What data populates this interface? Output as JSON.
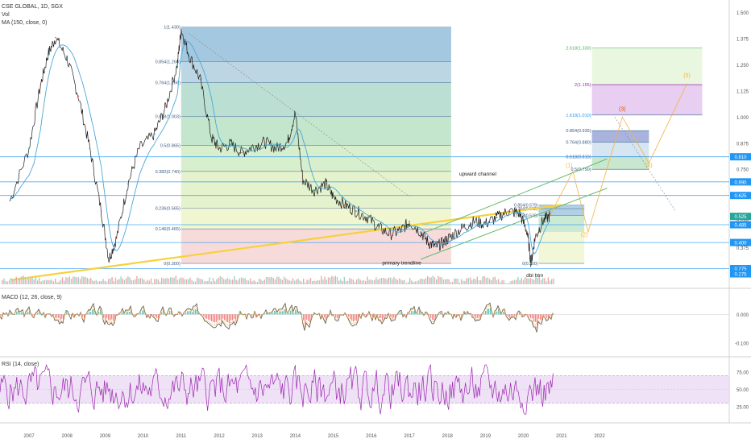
{
  "header": {
    "symbol": "CSE GLOBAL, 1D, SGX",
    "vol_label": "Vol",
    "ma_label": "MA (150, close, 0)"
  },
  "chart_data": [
    {
      "type": "line",
      "panel": "price",
      "symbol": "CSE GLOBAL",
      "interval": "1D",
      "exchange": "SGX",
      "y_scale": "linear",
      "ylim": [
        0.2,
        1.56
      ],
      "x_ticks": [
        "2007",
        "2008",
        "2009",
        "2010",
        "2011",
        "2012",
        "2013",
        "2014",
        "2015",
        "2016",
        "2017",
        "2018",
        "2019",
        "2020",
        "2021",
        "2022"
      ],
      "y_ticks": [
        0.25,
        0.375,
        0.5,
        0.625,
        0.75,
        0.875,
        1.0,
        1.125,
        1.25,
        1.375,
        1.5
      ],
      "y_tick_labels": [
        "0.250",
        "0.375",
        "0.500",
        "0.625",
        "0.750",
        "0.875",
        "1.000",
        "1.125",
        "1.250",
        "1.375",
        "1.500"
      ],
      "x": [
        2006.5,
        2007.0,
        2007.3,
        2007.5,
        2007.7,
        2008.0,
        2008.3,
        2008.6,
        2008.9,
        2009.1,
        2009.3,
        2009.6,
        2009.9,
        2010.3,
        2010.6,
        2010.9,
        2011.0,
        2011.2,
        2011.5,
        2011.8,
        2012.0,
        2012.3,
        2012.6,
        2012.9,
        2013.2,
        2013.5,
        2013.8,
        2014.0,
        2014.2,
        2014.5,
        2014.8,
        2015.0,
        2015.3,
        2015.6,
        2015.9,
        2016.2,
        2016.5,
        2016.8,
        2017.0,
        2017.3,
        2017.5,
        2017.7,
        2017.9,
        2018.1,
        2018.4,
        2018.7,
        2019.0,
        2019.3,
        2019.6,
        2019.9,
        2020.1,
        2020.2,
        2020.3,
        2020.5,
        2020.7
      ],
      "values": [
        0.6,
        0.85,
        1.15,
        1.3,
        1.38,
        1.28,
        1.1,
        0.85,
        0.55,
        0.32,
        0.42,
        0.68,
        0.85,
        0.92,
        1.05,
        1.25,
        1.42,
        1.3,
        1.18,
        0.9,
        0.85,
        0.87,
        0.83,
        0.86,
        0.88,
        0.85,
        0.88,
        1.02,
        0.7,
        0.65,
        0.68,
        0.62,
        0.58,
        0.55,
        0.52,
        0.47,
        0.44,
        0.46,
        0.5,
        0.45,
        0.4,
        0.38,
        0.4,
        0.43,
        0.47,
        0.5,
        0.49,
        0.52,
        0.55,
        0.54,
        0.45,
        0.3,
        0.42,
        0.5,
        0.53
      ],
      "annotations": [
        "upward channel",
        "primary trendline",
        "dbl btm"
      ],
      "fib_retracement": [
        {
          "ratio": 1.0,
          "value": 1.43,
          "label": "1(1.430)"
        },
        {
          "ratio": 0.854,
          "value": 1.266,
          "label": "0.854(1.266)"
        },
        {
          "ratio": 0.764,
          "value": 1.166,
          "label": "0.764(1.166)"
        },
        {
          "ratio": 0.618,
          "value": 1.003,
          "label": "0.618(1.003)"
        },
        {
          "ratio": 0.5,
          "value": 0.865,
          "label": "0.5(0.865)"
        },
        {
          "ratio": 0.382,
          "value": 0.74,
          "label": "0.382(0.740)"
        },
        {
          "ratio": 0.236,
          "value": 0.565,
          "label": "0.236(0.565)"
        },
        {
          "ratio": 0.146,
          "value": 0.465,
          "label": "0.146(0.465)"
        },
        {
          "ratio": 0.0,
          "value": 0.3,
          "label": "0(0.300)"
        }
      ],
      "fib_small": [
        {
          "value": 0.579,
          "label": "0.854(0.579)"
        },
        {
          "value": 0.562,
          "label": "0.764(0.562)"
        },
        {
          "value": 0.53,
          "label": "0.618(0.530)"
        },
        {
          "value": 0.3,
          "label": "0(0.300)"
        }
      ],
      "fib_extension": [
        {
          "value": 1.33,
          "label": "2.618(1.330)"
        },
        {
          "value": 1.155,
          "label": "2(1.155)"
        },
        {
          "value": 1.01,
          "label": "1.618(1.010)"
        },
        {
          "value": 0.935,
          "label": "0.854(0.935)"
        },
        {
          "value": 0.88,
          "label": "0.764(0.880)"
        },
        {
          "value": 0.81,
          "label": "0.618(0.810)"
        },
        {
          "value": 0.75,
          "label": "0.5(0.750)"
        }
      ],
      "wave_labels": [
        "(1)",
        "(2)",
        "(3)",
        "(4)",
        "(5)"
      ],
      "price_badges": [
        {
          "label": "0.810",
          "color": "#2196f3"
        },
        {
          "label": "0.690",
          "color": "#2196f3"
        },
        {
          "label": "0.625",
          "color": "#2196f3"
        },
        {
          "label": "0.525",
          "color": "#26a69a"
        },
        {
          "label": "0.485",
          "color": "#2196f3"
        },
        {
          "label": "0.400",
          "color": "#2196f3"
        },
        {
          "label": "0.275",
          "color": "#2196f3"
        },
        {
          "label": "0.275",
          "color": "#2196f3"
        }
      ]
    },
    {
      "type": "line",
      "panel": "macd",
      "title": "MACD (12, 26, close, 9)",
      "y_ticks": [
        0.0,
        -0.1
      ],
      "y_tick_labels": [
        "0.000",
        "-0.100"
      ],
      "ylim": [
        -0.14,
        0.08
      ]
    },
    {
      "type": "line",
      "panel": "rsi",
      "title": "RSI (14, close)",
      "y_ticks": [
        75,
        50,
        25
      ],
      "y_tick_labels": [
        "75.00",
        "50.00",
        "25.00"
      ],
      "ylim": [
        5,
        95
      ],
      "band": [
        30,
        70
      ]
    }
  ],
  "colors": {
    "price_line": "#1c1c1c",
    "ma_line": "#4aa8d8",
    "trendline": "#f7d13a",
    "channel": "#66bb6a",
    "macd": "#555555",
    "rsi": "#9c27b0",
    "rsi_band": "#e8d4f2",
    "axis_badge": "#2196f3",
    "fib_top": "#6fa8c8",
    "fib_bottom": "#f4b4b4"
  }
}
